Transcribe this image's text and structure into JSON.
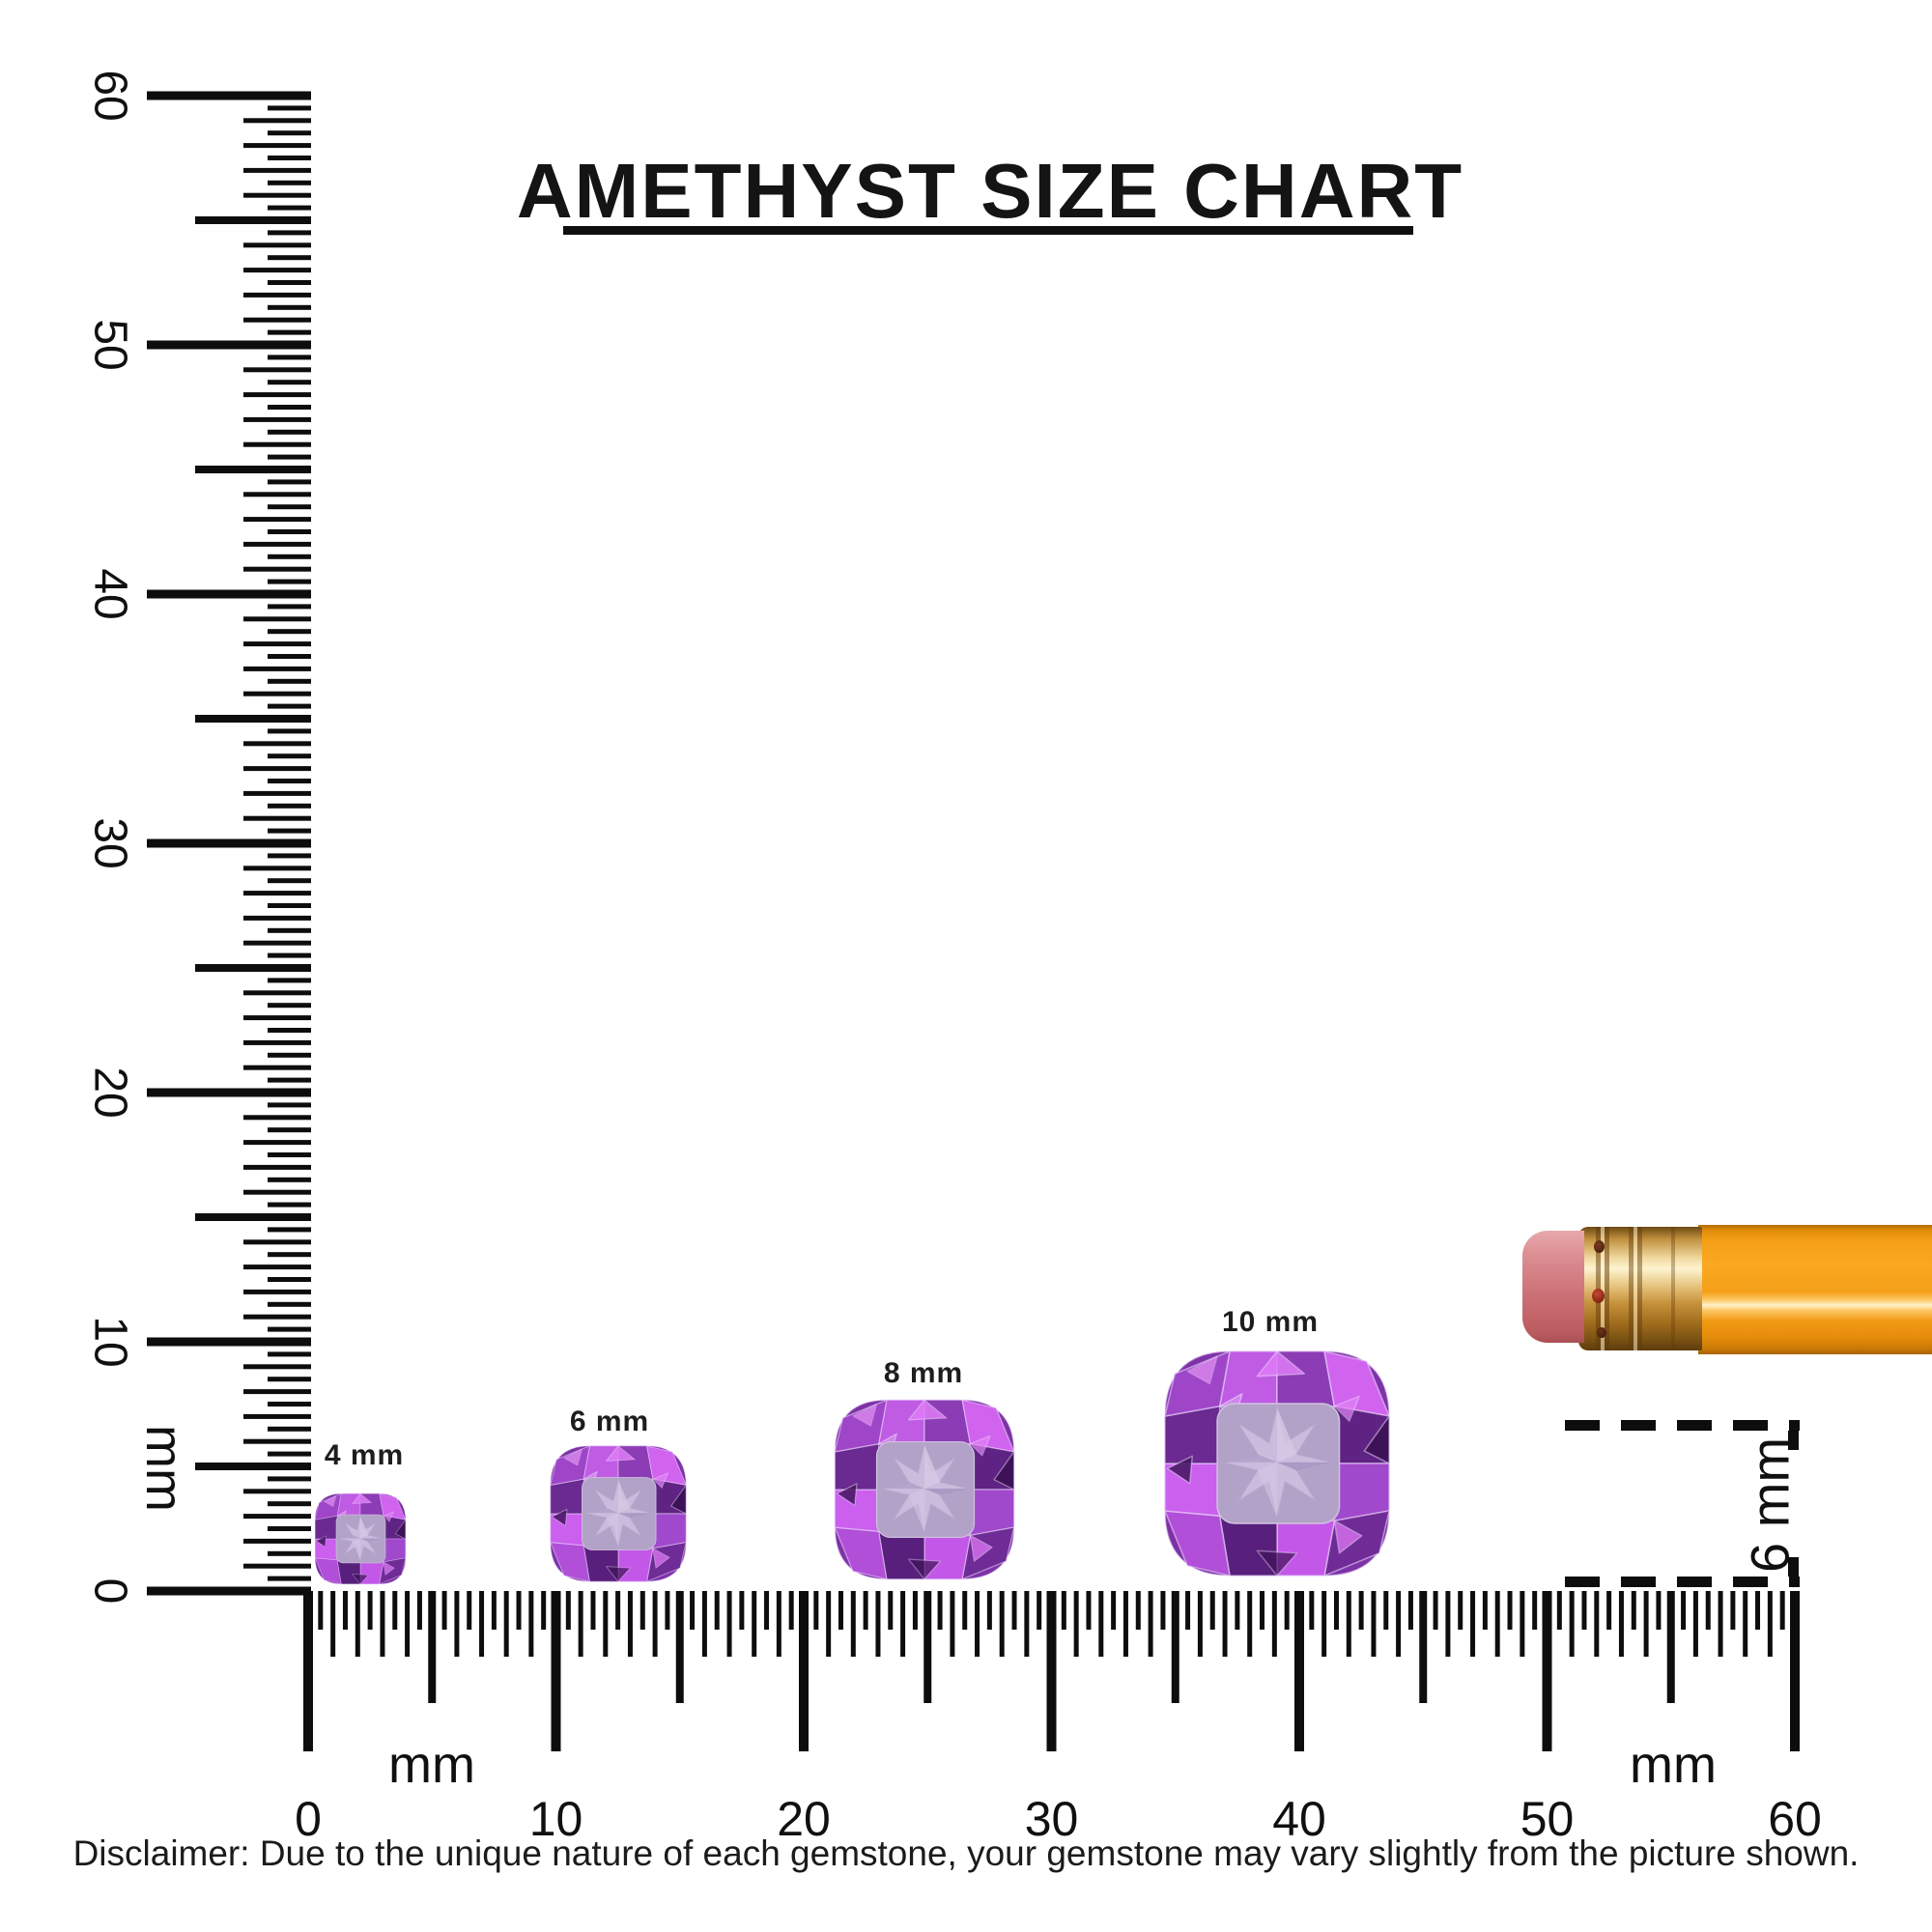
{
  "title": "AMETHYST SIZE CHART",
  "rulers": {
    "unit": "mm",
    "vertical": {
      "min": 0,
      "max": 60,
      "labels": [
        "0",
        "10",
        "20",
        "30",
        "40",
        "50",
        "60"
      ]
    },
    "horizontal": {
      "min": 0,
      "max": 60,
      "labels": [
        "0",
        "10",
        "20",
        "30",
        "40",
        "50",
        "60"
      ]
    }
  },
  "gems": [
    {
      "label": "4 mm",
      "size_mm": 4
    },
    {
      "label": "6 mm",
      "size_mm": 6
    },
    {
      "label": "8 mm",
      "size_mm": 8
    },
    {
      "label": "10 mm",
      "size_mm": 10
    }
  ],
  "pencil": {
    "eraser_diameter_label": "6 mm"
  },
  "disclaimer": "Disclaimer: Due to the unique nature of each gemstone, your gemstone may vary slightly from the picture shown.",
  "colors": {
    "ink": "#0d0d0d",
    "amethyst_bright": "#c757e8",
    "amethyst_mid": "#9a49c6",
    "amethyst_dark": "#5e2383",
    "amethyst_table": "#b2a2c7",
    "pencil_body": "#f7a41d",
    "pencil_ferrule": "#e6c37d",
    "eraser_pink": "#cd6a6d"
  }
}
